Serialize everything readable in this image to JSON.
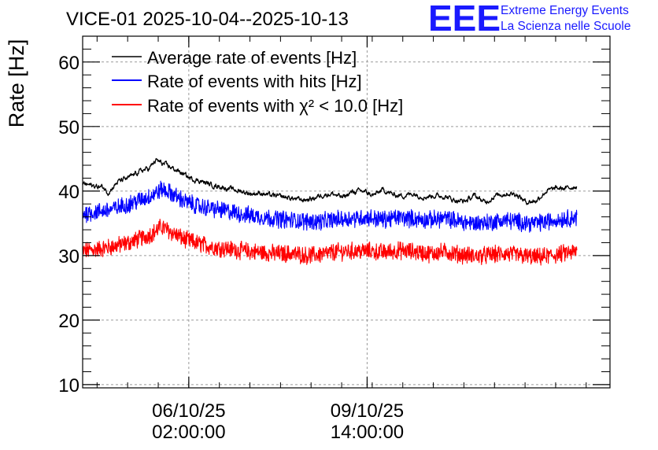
{
  "header": {
    "title": "VICE-01 2025-10-04--2025-10-13"
  },
  "logo": {
    "mark": "EEE",
    "line1": "Extreme Energy Events",
    "line2": "La Scienza nelle Scuole"
  },
  "chart_data": {
    "type": "line",
    "title": "VICE-01 2025-10-04--2025-10-13",
    "ylabel": "Rate [Hz]",
    "xlabel": "",
    "ylim": [
      9.5,
      64.0
    ],
    "xlim": [
      0,
      10.35
    ],
    "x_unit": "days since 2025-10-04 00:00",
    "yticks": [
      10,
      20,
      30,
      40,
      50,
      60
    ],
    "xticks": [
      {
        "x": 2.0833,
        "date": "06/10/25",
        "time": "02:00:00"
      },
      {
        "x": 5.5833,
        "date": "09/10/25",
        "time": "14:00:00"
      }
    ],
    "grid": true,
    "legend_position": "top-left",
    "series": [
      {
        "name": "Average rate of events [Hz]",
        "color": "#000000",
        "noise": 0.3,
        "x": [
          0.0,
          0.2,
          0.4,
          0.5,
          0.7,
          0.9,
          1.1,
          1.3,
          1.45,
          1.55,
          1.7,
          1.9,
          2.1,
          2.3,
          2.5,
          2.7,
          2.9,
          3.1,
          3.3,
          3.5,
          3.7,
          3.9,
          4.1,
          4.3,
          4.5,
          4.7,
          4.9,
          5.1,
          5.3,
          5.5,
          5.7,
          5.9,
          6.1,
          6.3,
          6.5,
          6.7,
          6.9,
          7.1,
          7.3,
          7.5,
          7.7,
          7.9,
          8.1,
          8.3,
          8.5,
          8.7,
          8.9,
          9.1,
          9.3,
          9.5,
          9.7
        ],
        "values": [
          41.2,
          40.8,
          40.6,
          39.8,
          41.5,
          42.0,
          43.0,
          43.5,
          44.8,
          44.3,
          43.8,
          43.0,
          42.0,
          41.6,
          41.0,
          40.7,
          40.3,
          40.0,
          39.6,
          39.7,
          39.3,
          39.1,
          38.9,
          38.6,
          38.8,
          39.4,
          39.6,
          39.0,
          39.9,
          40.0,
          39.3,
          40.2,
          39.4,
          39.3,
          39.6,
          39.1,
          39.3,
          39.2,
          38.6,
          38.4,
          39.3,
          38.2,
          39.3,
          39.6,
          39.6,
          38.3,
          38.5,
          40.0,
          40.4,
          40.4,
          40.8
        ]
      },
      {
        "name": "Rate of events with hits [Hz]",
        "color": "#0000ff",
        "noise": 1.2,
        "x": [
          0.0,
          0.3,
          0.6,
          0.9,
          1.2,
          1.4,
          1.55,
          1.7,
          2.0,
          2.3,
          2.6,
          2.9,
          3.2,
          3.5,
          3.8,
          4.1,
          4.4,
          4.7,
          5.0,
          5.3,
          5.6,
          5.9,
          6.2,
          6.5,
          6.8,
          7.1,
          7.4,
          7.7,
          8.0,
          8.3,
          8.6,
          8.9,
          9.2,
          9.5,
          9.7
        ],
        "values": [
          36.5,
          36.8,
          37.2,
          38.0,
          38.8,
          39.5,
          40.3,
          39.8,
          38.4,
          37.6,
          37.2,
          36.8,
          36.3,
          36.0,
          35.7,
          35.5,
          35.3,
          35.3,
          35.6,
          35.8,
          35.9,
          35.6,
          35.9,
          35.7,
          35.5,
          35.8,
          35.3,
          35.0,
          35.2,
          35.5,
          35.2,
          35.0,
          35.4,
          35.8,
          35.9
        ]
      },
      {
        "name": "Rate of events with χ² < 10.0 [Hz]",
        "color": "#ff0000",
        "noise": 1.2,
        "x": [
          0.0,
          0.3,
          0.6,
          0.9,
          1.2,
          1.4,
          1.55,
          1.7,
          2.0,
          2.3,
          2.6,
          2.9,
          3.2,
          3.5,
          3.8,
          4.1,
          4.4,
          4.7,
          5.0,
          5.3,
          5.6,
          5.9,
          6.2,
          6.5,
          6.8,
          7.1,
          7.4,
          7.7,
          8.0,
          8.3,
          8.6,
          8.9,
          9.2,
          9.5,
          9.7
        ],
        "values": [
          30.7,
          31.0,
          31.4,
          32.0,
          32.8,
          33.6,
          34.5,
          33.8,
          32.5,
          31.8,
          31.3,
          31.0,
          30.7,
          30.5,
          30.3,
          30.3,
          30.0,
          30.2,
          30.6,
          30.7,
          30.7,
          30.5,
          30.8,
          30.6,
          30.3,
          30.6,
          30.2,
          29.9,
          30.1,
          30.3,
          30.0,
          29.7,
          30.0,
          30.4,
          30.6
        ]
      }
    ]
  }
}
